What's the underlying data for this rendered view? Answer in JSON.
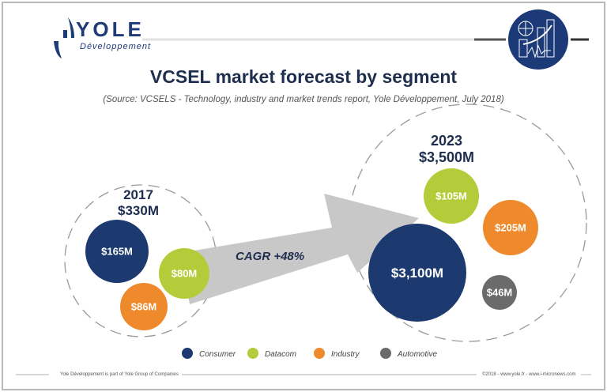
{
  "header": {
    "logo_main": "YOLE",
    "logo_sub": "Développement",
    "icon": "chart-analytics-icon"
  },
  "title": "VCSEL market forecast by segment",
  "subtitle": "(Source: VCSELS - Technology, industry and market trends report, Yole Développement, July 2018)",
  "chart_data": {
    "type": "bubble",
    "groups": [
      {
        "year": "2017",
        "total": "$330M",
        "values": [
          {
            "segment": "Consumer",
            "label": "$165M",
            "value": 165
          },
          {
            "segment": "Datacom",
            "label": "$80M",
            "value": 80
          },
          {
            "segment": "Industry",
            "label": "$86M",
            "value": 86
          }
        ]
      },
      {
        "year": "2023",
        "total": "$3,500M",
        "values": [
          {
            "segment": "Consumer",
            "label": "$3,100M",
            "value": 3100
          },
          {
            "segment": "Datacom",
            "label": "$105M",
            "value": 105
          },
          {
            "segment": "Industry",
            "label": "$205M",
            "value": 205
          },
          {
            "segment": "Automotive",
            "label": "$46M",
            "value": 46
          }
        ]
      }
    ],
    "annotation": "CAGR +48%",
    "legend": [
      {
        "name": "Consumer",
        "color": "#1d3a70"
      },
      {
        "name": "Datacom",
        "color": "#b5cc3a"
      },
      {
        "name": "Industry",
        "color": "#ef8a2c"
      },
      {
        "name": "Automotive",
        "color": "#6b6b6b"
      }
    ],
    "legend_placement": "bottom"
  },
  "footer": {
    "left": "Yole Développement is part of Yole Group of Companies",
    "right": "©2018 - www.yole.fr - www.i-micronews.com"
  }
}
